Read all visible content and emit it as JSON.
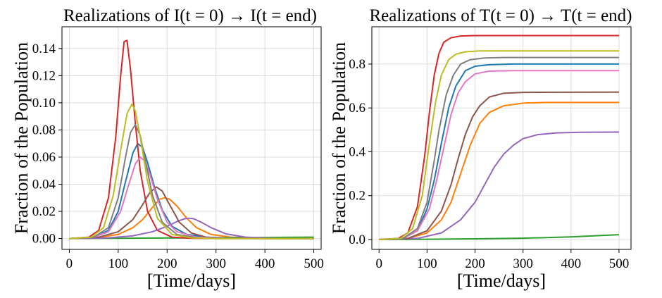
{
  "chart_data": [
    {
      "type": "line",
      "title": "Realizations of I(t = 0) → I(t = end)",
      "xlabel": "[Time/days]",
      "ylabel": "Fraction of the Population",
      "xlim": [
        -15,
        515
      ],
      "ylim": [
        -0.008,
        0.156
      ],
      "xticks": [
        0,
        100,
        200,
        300,
        400,
        500
      ],
      "yticks": [
        0.0,
        0.02,
        0.04,
        0.06,
        0.08,
        0.1,
        0.12,
        0.14
      ],
      "ytick_labels": [
        "0.00",
        "0.02",
        "0.04",
        "0.06",
        "0.08",
        "0.10",
        "0.12",
        "0.14"
      ],
      "grid": true,
      "series": [
        {
          "color": "#1f77b4",
          "x": [
            0,
            50,
            80,
            100,
            115,
            130,
            140,
            150,
            160,
            175,
            190,
            210,
            240,
            280,
            330,
            400,
            500
          ],
          "y": [
            0,
            0.001,
            0.006,
            0.02,
            0.042,
            0.063,
            0.07,
            0.067,
            0.056,
            0.037,
            0.021,
            0.009,
            0.003,
            0.001,
            0.0003,
            0.0001,
            0
          ]
        },
        {
          "color": "#ff7f0e",
          "x": [
            0,
            60,
            100,
            130,
            150,
            170,
            185,
            195,
            205,
            220,
            240,
            260,
            290,
            330,
            400,
            500
          ],
          "y": [
            0,
            0.0008,
            0.003,
            0.008,
            0.014,
            0.023,
            0.029,
            0.03,
            0.029,
            0.024,
            0.015,
            0.008,
            0.003,
            0.001,
            0.0002,
            0
          ]
        },
        {
          "color": "#2ca02c",
          "x": [
            0,
            100,
            200,
            300,
            400,
            500
          ],
          "y": [
            0,
            0.0002,
            0.0004,
            0.0006,
            0.0008,
            0.001
          ]
        },
        {
          "color": "#d62728",
          "x": [
            0,
            40,
            60,
            80,
            95,
            105,
            112,
            118,
            125,
            135,
            145,
            160,
            180,
            210,
            250,
            300,
            400,
            500
          ],
          "y": [
            0,
            0.001,
            0.006,
            0.03,
            0.075,
            0.12,
            0.145,
            0.146,
            0.125,
            0.085,
            0.05,
            0.02,
            0.006,
            0.001,
            0.0002,
            0,
            0,
            0
          ]
        },
        {
          "color": "#9467bd",
          "x": [
            0,
            80,
            130,
            170,
            200,
            220,
            235,
            245,
            255,
            270,
            290,
            320,
            360,
            420,
            500
          ],
          "y": [
            0,
            0.0005,
            0.002,
            0.005,
            0.009,
            0.0125,
            0.0145,
            0.015,
            0.0145,
            0.012,
            0.008,
            0.0035,
            0.001,
            0.0002,
            0
          ]
        },
        {
          "color": "#8c564b",
          "x": [
            0,
            60,
            100,
            130,
            150,
            165,
            178,
            190,
            205,
            225,
            250,
            280,
            320,
            400,
            500
          ],
          "y": [
            0,
            0.001,
            0.005,
            0.014,
            0.025,
            0.034,
            0.038,
            0.035,
            0.025,
            0.012,
            0.004,
            0.001,
            0.0002,
            0,
            0
          ]
        },
        {
          "color": "#e377c2",
          "x": [
            0,
            50,
            80,
            105,
            120,
            135,
            145,
            155,
            165,
            180,
            200,
            220,
            260,
            320,
            400,
            500
          ],
          "y": [
            0,
            0.001,
            0.005,
            0.02,
            0.038,
            0.055,
            0.06,
            0.057,
            0.047,
            0.029,
            0.012,
            0.005,
            0.001,
            0.0002,
            0,
            0
          ]
        },
        {
          "color": "#7f7f7f",
          "x": [
            0,
            50,
            80,
            100,
            115,
            125,
            135,
            145,
            155,
            170,
            190,
            220,
            260,
            320,
            400,
            500
          ],
          "y": [
            0,
            0.001,
            0.008,
            0.03,
            0.06,
            0.078,
            0.084,
            0.076,
            0.058,
            0.032,
            0.012,
            0.003,
            0.0005,
            0.0001,
            0,
            0
          ]
        },
        {
          "color": "#bcbd22",
          "x": [
            0,
            45,
            70,
            90,
            105,
            118,
            128,
            135,
            145,
            160,
            180,
            210,
            250,
            300,
            400,
            500
          ],
          "y": [
            0,
            0.001,
            0.008,
            0.032,
            0.065,
            0.092,
            0.099,
            0.094,
            0.075,
            0.042,
            0.015,
            0.003,
            0.0005,
            0,
            0,
            0
          ]
        }
      ]
    },
    {
      "type": "line",
      "title": "Realizations of T(t = 0) → T(t = end)",
      "xlabel": "[Time/days]",
      "ylabel": "Fraction of the Population",
      "xlim": [
        -15,
        525
      ],
      "ylim": [
        -0.045,
        0.97
      ],
      "xticks": [
        0,
        100,
        200,
        300,
        400,
        500
      ],
      "yticks": [
        0.0,
        0.2,
        0.4,
        0.6,
        0.8
      ],
      "ytick_labels": [
        "0.0",
        "0.2",
        "0.4",
        "0.6",
        "0.8"
      ],
      "grid": true,
      "series": [
        {
          "color": "#1f77b4",
          "x": [
            0,
            50,
            80,
            100,
            115,
            130,
            145,
            160,
            180,
            200,
            230,
            280,
            500
          ],
          "y": [
            0,
            0.005,
            0.04,
            0.14,
            0.27,
            0.44,
            0.6,
            0.7,
            0.77,
            0.79,
            0.797,
            0.8,
            0.8
          ]
        },
        {
          "color": "#ff7f0e",
          "x": [
            0,
            60,
            100,
            130,
            150,
            170,
            190,
            210,
            230,
            260,
            300,
            350,
            500
          ],
          "y": [
            0,
            0.005,
            0.03,
            0.09,
            0.17,
            0.3,
            0.43,
            0.53,
            0.58,
            0.61,
            0.622,
            0.625,
            0.625
          ]
        },
        {
          "color": "#2ca02c",
          "x": [
            0,
            100,
            200,
            300,
            400,
            500
          ],
          "y": [
            0,
            0.001,
            0.003,
            0.006,
            0.012,
            0.022
          ]
        },
        {
          "color": "#d62728",
          "x": [
            0,
            40,
            60,
            80,
            95,
            105,
            115,
            125,
            135,
            150,
            170,
            200,
            500
          ],
          "y": [
            0,
            0.005,
            0.03,
            0.15,
            0.38,
            0.58,
            0.75,
            0.85,
            0.9,
            0.92,
            0.928,
            0.93,
            0.93
          ]
        },
        {
          "color": "#9467bd",
          "x": [
            0,
            80,
            130,
            170,
            200,
            220,
            240,
            260,
            280,
            300,
            330,
            370,
            420,
            500
          ],
          "y": [
            0,
            0.005,
            0.03,
            0.09,
            0.17,
            0.25,
            0.33,
            0.39,
            0.43,
            0.46,
            0.478,
            0.486,
            0.489,
            0.49
          ]
        },
        {
          "color": "#8c564b",
          "x": [
            0,
            60,
            100,
            130,
            150,
            165,
            180,
            195,
            210,
            230,
            260,
            300,
            500
          ],
          "y": [
            0,
            0.005,
            0.04,
            0.13,
            0.25,
            0.37,
            0.48,
            0.56,
            0.61,
            0.65,
            0.667,
            0.671,
            0.672
          ]
        },
        {
          "color": "#e377c2",
          "x": [
            0,
            50,
            80,
            105,
            120,
            135,
            150,
            165,
            180,
            200,
            230,
            280,
            500
          ],
          "y": [
            0,
            0.005,
            0.04,
            0.14,
            0.27,
            0.42,
            0.57,
            0.67,
            0.72,
            0.755,
            0.768,
            0.77,
            0.77
          ]
        },
        {
          "color": "#7f7f7f",
          "x": [
            0,
            50,
            80,
            100,
            115,
            125,
            140,
            155,
            170,
            190,
            220,
            260,
            500
          ],
          "y": [
            0,
            0.005,
            0.05,
            0.17,
            0.36,
            0.5,
            0.66,
            0.75,
            0.8,
            0.82,
            0.828,
            0.83,
            0.83
          ]
        },
        {
          "color": "#bcbd22",
          "x": [
            0,
            45,
            70,
            90,
            105,
            118,
            130,
            145,
            160,
            180,
            210,
            250,
            500
          ],
          "y": [
            0,
            0.005,
            0.05,
            0.2,
            0.44,
            0.63,
            0.75,
            0.82,
            0.845,
            0.856,
            0.86,
            0.86,
            0.86
          ]
        }
      ]
    }
  ]
}
